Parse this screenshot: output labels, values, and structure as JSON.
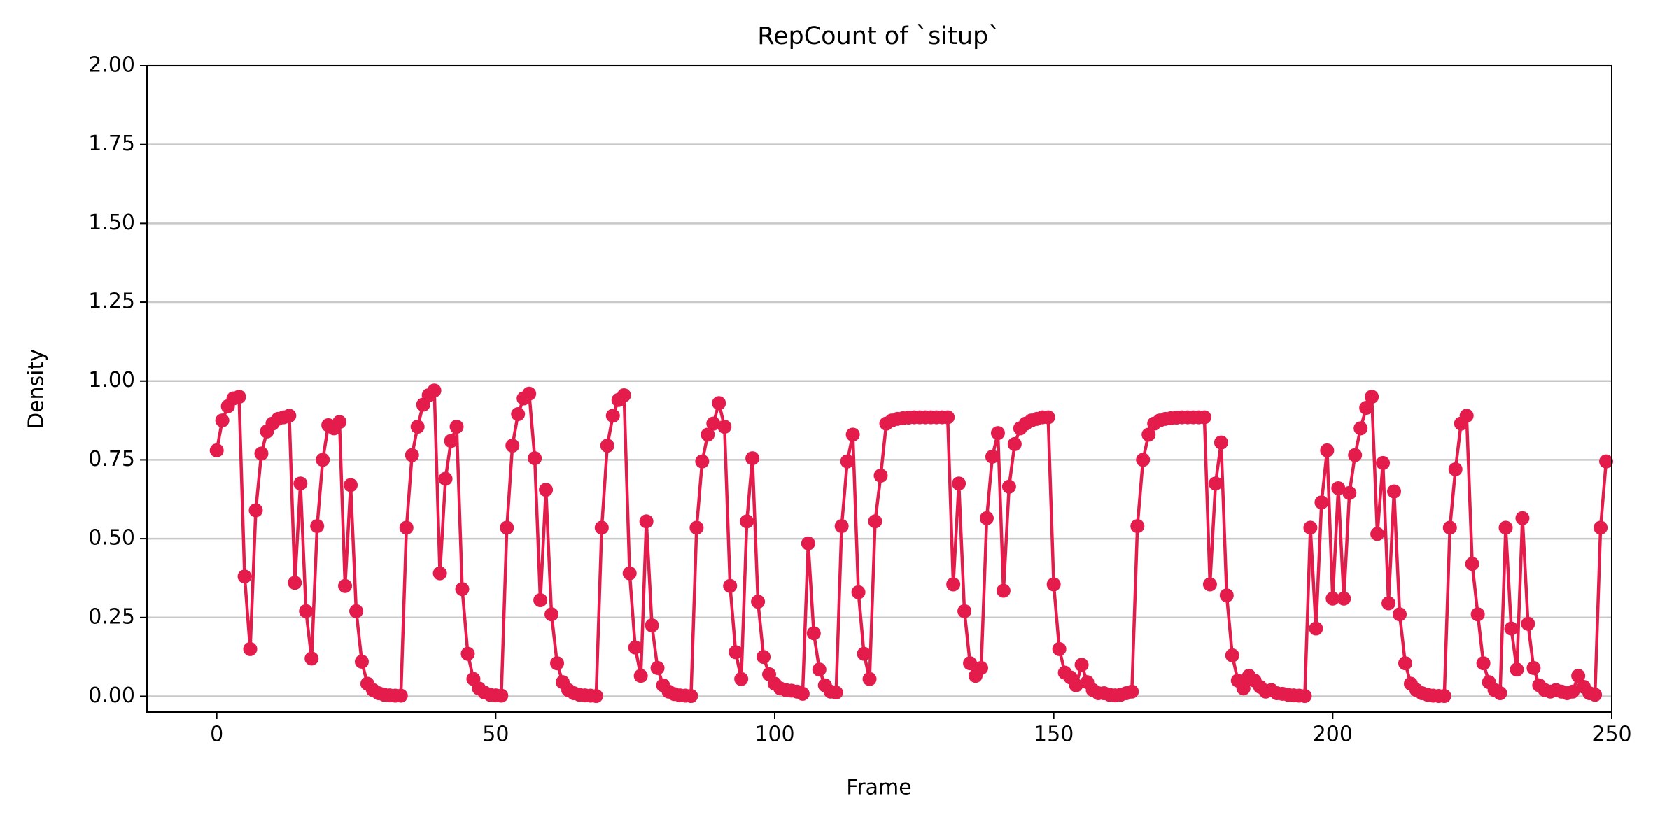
{
  "chart_data": {
    "type": "line",
    "title": "RepCount of `situp`",
    "xlabel": "Frame",
    "ylabel": "Density",
    "color": "#e31c4c",
    "grid": true,
    "markers": true,
    "xlim": [
      -12.5,
      250
    ],
    "ylim": [
      -0.05,
      2.0
    ],
    "xticks": [
      0,
      50,
      100,
      150,
      200,
      250
    ],
    "yticks": [
      {
        "value": 0,
        "label": "0.00"
      },
      0.25,
      {
        "value": 0.5,
        "label": "0.50"
      },
      0.75,
      {
        "value": 1,
        "label": "1.00"
      },
      1.25,
      {
        "value": 1.5,
        "label": "1.50"
      },
      1.75,
      {
        "value": 2,
        "label": "2.00"
      }
    ],
    "x": [
      0,
      1,
      2,
      3,
      4,
      5,
      6,
      7,
      8,
      9,
      10,
      11,
      12,
      13,
      14,
      15,
      16,
      17,
      18,
      19,
      20,
      21,
      22,
      23,
      24,
      25,
      26,
      27,
      28,
      29,
      30,
      31,
      32,
      33,
      34,
      35,
      36,
      37,
      38,
      39,
      40,
      41,
      42,
      43,
      44,
      45,
      46,
      47,
      48,
      49,
      50,
      51,
      52,
      53,
      54,
      55,
      56,
      57,
      58,
      59,
      60,
      61,
      62,
      63,
      64,
      65,
      66,
      67,
      68,
      69,
      70,
      71,
      72,
      73,
      74,
      75,
      76,
      77,
      78,
      79,
      80,
      81,
      82,
      83,
      84,
      85,
      86,
      87,
      88,
      89,
      90,
      91,
      92,
      93,
      94,
      95,
      96,
      97,
      98,
      99,
      100,
      101,
      102,
      103,
      104,
      105,
      106,
      107,
      108,
      109,
      110,
      111,
      112,
      113,
      114,
      115,
      116,
      117,
      118,
      119,
      120,
      121,
      122,
      123,
      124,
      125,
      126,
      127,
      128,
      129,
      130,
      131,
      132,
      133,
      134,
      135,
      136,
      137,
      138,
      139,
      140,
      141,
      142,
      143,
      144,
      145,
      146,
      147,
      148,
      149,
      150,
      151,
      152,
      153,
      154,
      155,
      156,
      157,
      158,
      159,
      160,
      161,
      162,
      163,
      164,
      165,
      166,
      167,
      168,
      169,
      170,
      171,
      172,
      173,
      174,
      175,
      176,
      177,
      178,
      179,
      180,
      181,
      182,
      183,
      184,
      185,
      186,
      187,
      188,
      189,
      190,
      191,
      192,
      193,
      194,
      195,
      196,
      197,
      198,
      199,
      200,
      201,
      202,
      203,
      204,
      205,
      206,
      207,
      208,
      209,
      210,
      211,
      212,
      213,
      214,
      215,
      216,
      217,
      218,
      219,
      220,
      221,
      222,
      223,
      224,
      225,
      226,
      227,
      228,
      229,
      230,
      231,
      232,
      233,
      234,
      235,
      236,
      237,
      238,
      239,
      240,
      241,
      242,
      243,
      244,
      245,
      246,
      247,
      248,
      249
    ],
    "values": [
      0.78,
      0.875,
      0.92,
      0.945,
      0.95,
      0.38,
      0.15,
      0.59,
      0.77,
      0.84,
      0.865,
      0.88,
      0.885,
      0.89,
      0.36,
      0.675,
      0.27,
      0.12,
      0.54,
      0.75,
      0.86,
      0.85,
      0.87,
      0.35,
      0.67,
      0.27,
      0.11,
      0.04,
      0.02,
      0.01,
      0.005,
      0.003,
      0.002,
      0.002,
      0.535,
      0.765,
      0.855,
      0.925,
      0.955,
      0.97,
      0.39,
      0.69,
      0.81,
      0.855,
      0.34,
      0.135,
      0.055,
      0.025,
      0.012,
      0.005,
      0.003,
      0.002,
      0.535,
      0.795,
      0.895,
      0.945,
      0.96,
      0.755,
      0.305,
      0.655,
      0.26,
      0.105,
      0.045,
      0.02,
      0.01,
      0.005,
      0.003,
      0.002,
      0.001,
      0.535,
      0.795,
      0.89,
      0.94,
      0.955,
      0.39,
      0.155,
      0.065,
      0.555,
      0.225,
      0.09,
      0.035,
      0.015,
      0.007,
      0.003,
      0.002,
      0.001,
      0.535,
      0.745,
      0.83,
      0.865,
      0.93,
      0.855,
      0.35,
      0.14,
      0.055,
      0.555,
      0.755,
      0.3,
      0.125,
      0.07,
      0.04,
      0.025,
      0.02,
      0.018,
      0.015,
      0.008,
      0.485,
      0.2,
      0.085,
      0.035,
      0.015,
      0.012,
      0.54,
      0.745,
      0.83,
      0.33,
      0.135,
      0.055,
      0.555,
      0.7,
      0.865,
      0.875,
      0.88,
      0.882,
      0.884,
      0.885,
      0.885,
      0.885,
      0.885,
      0.885,
      0.885,
      0.885,
      0.355,
      0.675,
      0.27,
      0.105,
      0.065,
      0.09,
      0.565,
      0.76,
      0.835,
      0.335,
      0.665,
      0.8,
      0.85,
      0.865,
      0.875,
      0.88,
      0.885,
      0.885,
      0.355,
      0.15,
      0.075,
      0.06,
      0.035,
      0.1,
      0.045,
      0.02,
      0.01,
      0.01,
      0.005,
      0.003,
      0.005,
      0.01,
      0.015,
      0.54,
      0.75,
      0.83,
      0.865,
      0.875,
      0.88,
      0.882,
      0.884,
      0.885,
      0.885,
      0.885,
      0.885,
      0.885,
      0.355,
      0.675,
      0.805,
      0.32,
      0.13,
      0.05,
      0.025,
      0.065,
      0.05,
      0.03,
      0.015,
      0.02,
      0.01,
      0.008,
      0.005,
      0.003,
      0.002,
      0.001,
      0.535,
      0.215,
      0.615,
      0.78,
      0.31,
      0.66,
      0.31,
      0.645,
      0.765,
      0.85,
      0.915,
      0.95,
      0.515,
      0.74,
      0.295,
      0.65,
      0.26,
      0.105,
      0.04,
      0.02,
      0.01,
      0.005,
      0.002,
      0.001,
      0.001,
      0.535,
      0.72,
      0.865,
      0.89,
      0.42,
      0.26,
      0.105,
      0.045,
      0.02,
      0.01,
      0.535,
      0.215,
      0.085,
      0.565,
      0.23,
      0.09,
      0.035,
      0.02,
      0.015,
      0.02,
      0.015,
      0.01,
      0.015,
      0.065,
      0.03,
      0.01,
      0.005,
      0.535,
      0.745
    ]
  }
}
